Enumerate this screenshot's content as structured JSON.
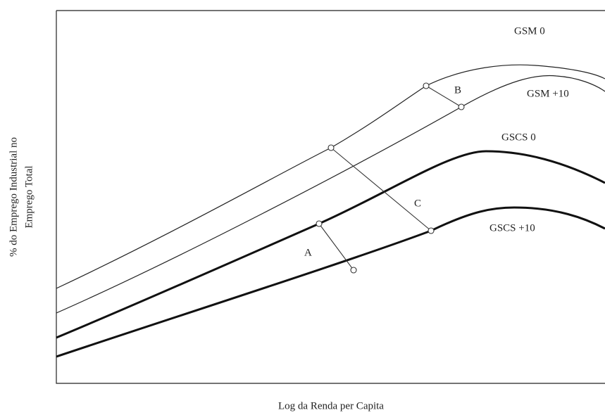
{
  "curves": {
    "gsm_0": "GSM 0",
    "gsm_10": "GSM +10",
    "gscs_0": "GSCS 0",
    "gscs_10": "GSCS +10"
  },
  "shifts": {
    "a": "A",
    "b": "B",
    "c": "C"
  },
  "axes": {
    "x_label": "Log da Renda per Capita",
    "y_label": [
      "% do Emprego Industrial no",
      "Emprego Total"
    ]
  }
}
